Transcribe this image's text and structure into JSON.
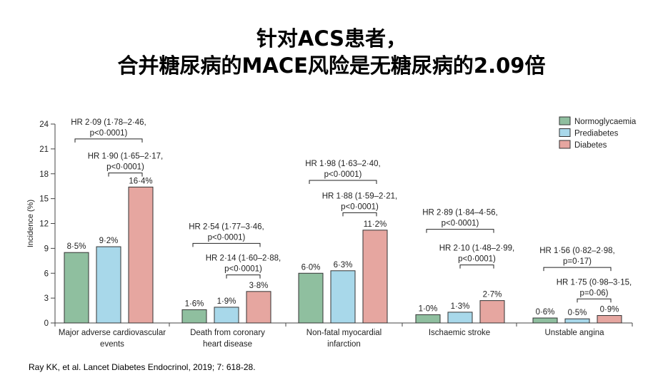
{
  "title_line1": "针对ACS患者，",
  "title_line2": "合并糖尿病的MACE风险是无糖尿病的2.09倍",
  "citation": "Ray KK, et al. Lancet Diabetes Endocrinol, 2019; 7: 618-28.",
  "colors": {
    "normoglycaemia": "#8fbf9f",
    "prediabetes": "#a8d8ea",
    "diabetes": "#e6a6a0"
  },
  "chart_data": {
    "type": "bar",
    "ylabel": "Incidence (%)",
    "ylim": [
      0,
      24
    ],
    "yticks": [
      0,
      3,
      6,
      9,
      12,
      15,
      18,
      21,
      24
    ],
    "legend_position": "top-right",
    "categories": [
      [
        "Major adverse cardiovascular",
        "events"
      ],
      [
        "Death from coronary",
        "heart disease"
      ],
      [
        "Non-fatal myocardial",
        "infarction"
      ],
      [
        "Ischaemic stroke"
      ],
      [
        "Unstable angina"
      ]
    ],
    "series": [
      {
        "name": "Normoglycaemia",
        "values": [
          8.5,
          1.6,
          6.0,
          1.0,
          0.6
        ],
        "labels": [
          "8·5%",
          "1·6%",
          "6·0%",
          "1·0%",
          "0·6%"
        ]
      },
      {
        "name": "Prediabetes",
        "values": [
          9.2,
          1.9,
          6.3,
          1.3,
          0.5
        ],
        "labels": [
          "9·2%",
          "1·9%",
          "6·3%",
          "1·3%",
          "0·5%"
        ]
      },
      {
        "name": "Diabetes",
        "values": [
          16.4,
          3.8,
          11.2,
          2.7,
          0.9
        ],
        "labels": [
          "16·4%",
          "3·8%",
          "11·2%",
          "2·7%",
          "0·9%"
        ]
      }
    ],
    "annotations": [
      [
        {
          "from": 0,
          "to": 2,
          "level": 22.2,
          "lines": [
            "HR 2·09 (1·78–2·46,",
            "p<0·0001)"
          ]
        },
        {
          "from": 1,
          "to": 2,
          "level": 18.1,
          "lines": [
            "HR 1·90 (1·65–2·17,",
            "p<0·0001)"
          ]
        }
      ],
      [
        {
          "from": 0,
          "to": 2,
          "level": 9.6,
          "lines": [
            "HR 2·54 (1·77–3·46,",
            "p<0·0001)"
          ]
        },
        {
          "from": 1,
          "to": 2,
          "level": 5.8,
          "lines": [
            "HR 2·14 (1·60–2·88,",
            "p<0·0001)"
          ]
        }
      ],
      [
        {
          "from": 0,
          "to": 2,
          "level": 17.2,
          "lines": [
            "HR 1·98 (1·63–2·40,",
            "p<0·0001)"
          ]
        },
        {
          "from": 1,
          "to": 2,
          "level": 13.3,
          "lines": [
            "HR 1·88 (1·59–2·21,",
            "p<0·0001)"
          ]
        }
      ],
      [
        {
          "from": 0,
          "to": 2,
          "level": 11.3,
          "lines": [
            "HR 2·89 (1·84–4·56,",
            "p<0·0001)"
          ]
        },
        {
          "from": 1,
          "to": 2,
          "level": 7.0,
          "lines": [
            "HR 2·10 (1·48–2·99,",
            "p<0·0001)"
          ]
        }
      ],
      [
        {
          "from": 0,
          "to": 2,
          "level": 6.7,
          "lines": [
            "HR 1·56 (0·82–2·98,",
            "p=0·17)"
          ]
        },
        {
          "from": 1,
          "to": 2,
          "level": 2.9,
          "lines": [
            "HR 1·75 (0·98–3·15,",
            "p=0·06)"
          ]
        }
      ]
    ]
  }
}
